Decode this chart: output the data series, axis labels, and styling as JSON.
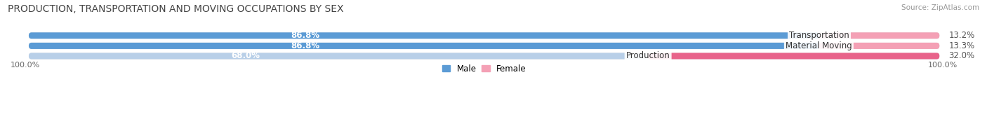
{
  "title": "PRODUCTION, TRANSPORTATION AND MOVING OCCUPATIONS BY SEX",
  "source": "Source: ZipAtlas.com",
  "categories": [
    "Transportation",
    "Material Moving",
    "Production"
  ],
  "male_pct": [
    86.8,
    86.8,
    68.0
  ],
  "female_pct": [
    13.2,
    13.3,
    32.0
  ],
  "male_color_dark": "#5b9bd5",
  "male_color_light": "#b8cfe8",
  "female_color_dark": "#f4a0b5",
  "female_color_production": "#e8638a",
  "bar_bg_color": "#e4e4e4",
  "title_fontsize": 10,
  "source_fontsize": 7.5,
  "label_fontsize": 8.5,
  "axis_label_fontsize": 8,
  "legend_fontsize": 8.5,
  "x_left_label": "100.0%",
  "x_right_label": "100.0%"
}
